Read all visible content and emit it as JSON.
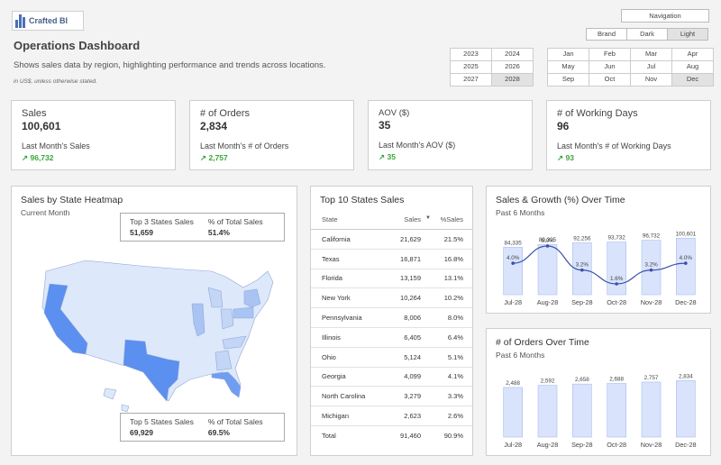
{
  "brand": {
    "name": "Crafted BI"
  },
  "header": {
    "title": "Operations Dashboard",
    "subtitle": "Shows sales data by region, highlighting performance and trends across locations.",
    "note": "in US$, unless otherwise stated."
  },
  "controls": {
    "navigation_label": "Navigation",
    "themes": [
      {
        "label": "Brand",
        "active": false
      },
      {
        "label": "Dark",
        "active": false
      },
      {
        "label": "Light",
        "active": true
      }
    ],
    "years": [
      {
        "label": "2023",
        "active": false
      },
      {
        "label": "2024",
        "active": false
      },
      {
        "label": "2025",
        "active": false
      },
      {
        "label": "2026",
        "active": false
      },
      {
        "label": "2027",
        "active": false
      },
      {
        "label": "2028",
        "active": true
      }
    ],
    "months": [
      {
        "label": "Jan",
        "active": false
      },
      {
        "label": "Feb",
        "active": false
      },
      {
        "label": "Mar",
        "active": false
      },
      {
        "label": "Apr",
        "active": false
      },
      {
        "label": "May",
        "active": false
      },
      {
        "label": "Jun",
        "active": false
      },
      {
        "label": "Jul",
        "active": false
      },
      {
        "label": "Aug",
        "active": false
      },
      {
        "label": "Sep",
        "active": false
      },
      {
        "label": "Oct",
        "active": false
      },
      {
        "label": "Nov",
        "active": false
      },
      {
        "label": "Dec",
        "active": true
      }
    ]
  },
  "kpis": [
    {
      "label": "Sales",
      "value": "100,601",
      "sub_label": "Last Month's Sales",
      "delta": "↗ 96,732"
    },
    {
      "label": "# of Orders",
      "value": "2,834",
      "sub_label": "Last Month's # of Orders",
      "delta": "↗ 2,757"
    },
    {
      "label": "AOV ($)",
      "value": "35",
      "sub_label": "Last Month's AOV ($)",
      "delta": "↗ 35"
    },
    {
      "label": "# of Working Days",
      "value": "96",
      "sub_label": "Last Month's # of Working Days",
      "delta": "↗ 93"
    }
  ],
  "heatmap": {
    "title": "Sales by State Heatmap",
    "subtitle": "Current Month",
    "top3": {
      "label": "Top 3 States Sales",
      "value": "51,659",
      "pct_label": "% of Total Sales",
      "pct_value": "51.4%"
    },
    "top5": {
      "label": "Top 5 States Sales",
      "value": "69,929",
      "pct_label": "% of Total Sales",
      "pct_value": "69.5%"
    },
    "colors": {
      "low": "#dde8fb",
      "mid": "#a9c4f3",
      "high": "#5b8ff0"
    }
  },
  "top10": {
    "title": "Top 10 States Sales",
    "columns": [
      "State",
      "Sales",
      "%Sales"
    ],
    "sort_indicator": "▼",
    "rows": [
      [
        "California",
        "21,629",
        "21.5%"
      ],
      [
        "Texas",
        "16,871",
        "16.8%"
      ],
      [
        "Florida",
        "13,159",
        "13.1%"
      ],
      [
        "New York",
        "10,264",
        "10.2%"
      ],
      [
        "Pennsylvania",
        "8,006",
        "8.0%"
      ],
      [
        "Illinois",
        "6,405",
        "6.4%"
      ],
      [
        "Ohio",
        "5,124",
        "5.1%"
      ],
      [
        "Georgia",
        "4,099",
        "4.1%"
      ],
      [
        "North Carolina",
        "3,279",
        "3.3%"
      ],
      [
        "Michigan",
        "2,623",
        "2.6%"
      ]
    ],
    "total": [
      "Total",
      "91,460",
      "90.9%"
    ]
  },
  "chart_data": [
    {
      "type": "bar",
      "title": "Sales & Growth (%) Over Time",
      "subtitle": "Past 6 Months",
      "categories": [
        "Jul-28",
        "Aug-28",
        "Sep-28",
        "Oct-28",
        "Nov-28",
        "Dec-28"
      ],
      "series": [
        {
          "values": [
            84335,
            89395,
            92256,
            93732,
            96732,
            100601
          ],
          "labels": [
            "84,335",
            "89,395",
            "92,256",
            "93,732",
            "96,732",
            "100,601"
          ]
        },
        {
          "type": "line",
          "values": [
            4.0,
            6.0,
            3.2,
            1.6,
            3.2,
            4.0
          ],
          "labels": [
            "4.0%",
            "6.0%",
            "3.2%",
            "1.6%",
            "3.2%",
            "4.0%"
          ]
        }
      ],
      "colors": {
        "bar": "#d9e3fb",
        "bar_border": "#a8bdf0",
        "line": "#3c4fa8"
      }
    },
    {
      "type": "bar",
      "title": "# of Orders Over Time",
      "subtitle": "Past 6 Months",
      "categories": [
        "Jul-28",
        "Aug-28",
        "Sep-28",
        "Oct-28",
        "Nov-28",
        "Dec-28"
      ],
      "series": [
        {
          "values": [
            2488,
            2592,
            2658,
            2688,
            2757,
            2834
          ],
          "labels": [
            "2,488",
            "2,592",
            "2,658",
            "2,688",
            "2,757",
            "2,834"
          ]
        }
      ],
      "colors": {
        "bar": "#d9e3fb",
        "bar_border": "#a8bdf0"
      }
    }
  ]
}
